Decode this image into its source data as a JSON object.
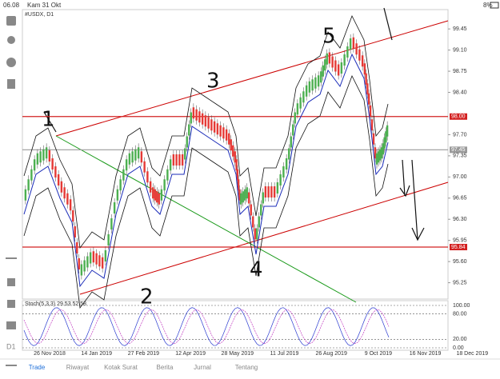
{
  "status_bar": {
    "time": "06.08",
    "date": "Kam 31 Okt",
    "battery": "8%"
  },
  "chart": {
    "symbol": "#USDX, D1",
    "ylim": [
      94.98,
      99.77
    ],
    "price_ticks": [
      {
        "value": 99.45,
        "label": "99.45"
      },
      {
        "value": 99.1,
        "label": "99.10"
      },
      {
        "value": 98.75,
        "label": "98.75"
      },
      {
        "value": 98.4,
        "label": "98.40"
      },
      {
        "value": 97.7,
        "label": "97.70"
      },
      {
        "value": 97.35,
        "label": "97.35"
      },
      {
        "value": 97.0,
        "label": "97.00"
      },
      {
        "value": 96.65,
        "label": "96.65"
      },
      {
        "value": 96.3,
        "label": "96.30"
      },
      {
        "value": 95.95,
        "label": "95.95"
      },
      {
        "value": 95.6,
        "label": "95.60"
      },
      {
        "value": 95.25,
        "label": "95.25"
      }
    ],
    "levels": [
      {
        "value": 98.0,
        "label": "98.00",
        "color": "#d32020"
      },
      {
        "value": 97.45,
        "label": "97.45",
        "color": "#9a9a9a"
      },
      {
        "value": 95.84,
        "label": "95.84",
        "color": "#d32020"
      }
    ],
    "dates": [
      "26 Nov 2018",
      "14 Jan 2019",
      "27 Feb 2019",
      "12 Apr 2019",
      "28 May 2019",
      "11 Jul 2019",
      "26 Aug 2019",
      "9 Oct 2019",
      "16 Nov 2019",
      "18 Dec 2019"
    ],
    "annotations": [
      "1",
      "2",
      "3",
      "4",
      "5"
    ]
  },
  "stochastic": {
    "title": "Stoch(5,3,3) 29.53 52.58",
    "ticks": [
      {
        "value": 100,
        "label": "100.00"
      },
      {
        "value": 80,
        "label": "80.00"
      },
      {
        "value": 20,
        "label": "20.00"
      },
      {
        "value": 0,
        "label": "0.00"
      }
    ]
  },
  "tabs": [
    "Trade",
    "Riwayat",
    "Kotak Surat",
    "Berita",
    "Jurnal",
    "Tentang"
  ]
}
